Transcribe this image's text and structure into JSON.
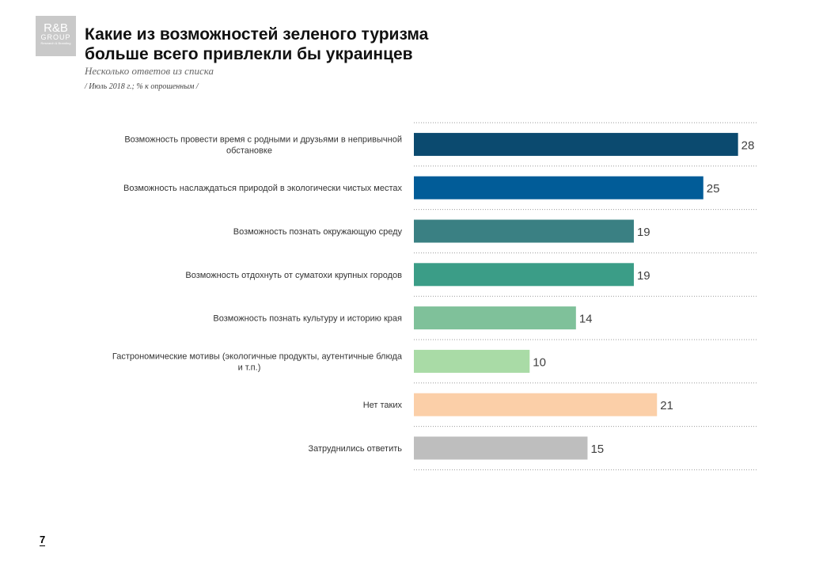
{
  "logo": {
    "line1": "R&B",
    "line2": "GROUP",
    "line3": "Research & Branding"
  },
  "title": {
    "line1": "Какие из возможностей зеленого туризма",
    "line2": "больше всего привлекли бы украинцев"
  },
  "subtitle": "Несколько ответов из списка",
  "note": "/ Июль 2018 г.; % к опрошенным /",
  "page_number": "7",
  "chart_data": {
    "type": "bar",
    "orientation": "horizontal",
    "categories": [
      [
        "Возможность провести время с родными и друзьями в непривычной",
        "обстановке"
      ],
      [
        "Возможность наслаждаться природой в экологически чистых местах"
      ],
      [
        "Возможность познать окружающую среду"
      ],
      [
        "Возможность отдохнуть от суматохи крупных городов"
      ],
      [
        "Возможность познать культуру и историю края"
      ],
      [
        "Гастрономические мотивы (экологичные продукты, аутентичные блюда",
        "и т.п.)"
      ],
      [
        "Нет таких"
      ],
      [
        "Затруднились ответить"
      ]
    ],
    "values": [
      28,
      25,
      19,
      19,
      14,
      10,
      21,
      15
    ],
    "colors": [
      "#0b4a6f",
      "#015c98",
      "#3a8083",
      "#3b9d87",
      "#7fc19a",
      "#a9dba6",
      "#fbcfa8",
      "#bebebe"
    ],
    "xlim": [
      0,
      30
    ],
    "grid": "horizontal dotted separators",
    "data_labels": true
  }
}
